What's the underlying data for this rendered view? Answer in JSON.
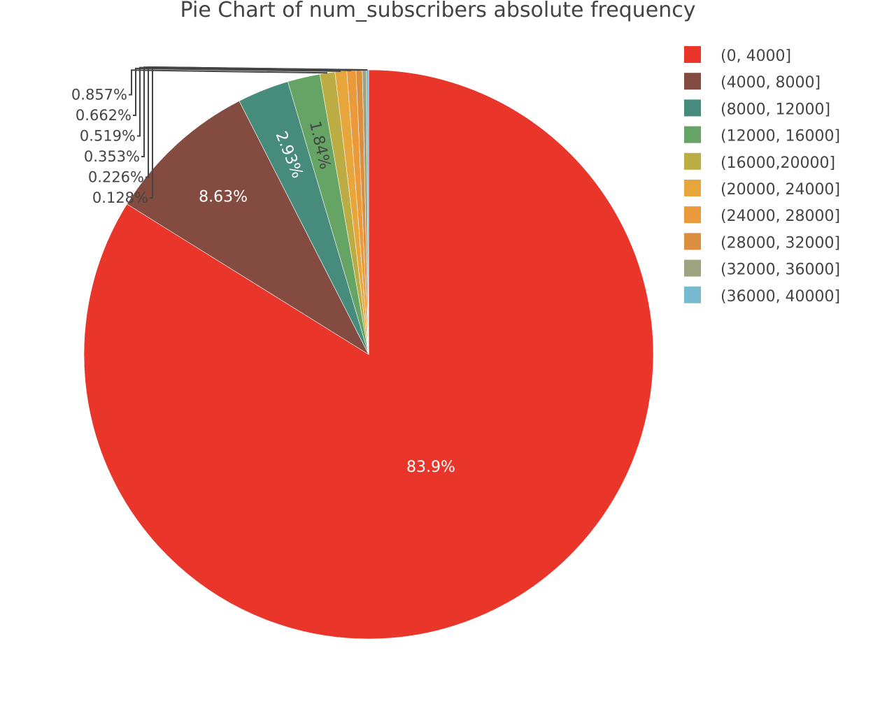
{
  "chart_data": {
    "type": "pie",
    "title": "Pie Chart of num_subscribers absolute frequency",
    "start_angle_deg": 90,
    "direction": "clockwise",
    "legend_position": "right",
    "slices": [
      {
        "label": "(0, 4000]",
        "percent": 83.9,
        "text": "83.9%",
        "color": "#E9352A",
        "text_color": "#ffffff",
        "text_mode": "inside"
      },
      {
        "label": "(4000, 8000]",
        "percent": 8.63,
        "text": "8.63%",
        "color": "#844B41",
        "text_color": "#ffffff",
        "text_mode": "inside"
      },
      {
        "label": "(8000, 12000]",
        "percent": 2.93,
        "text": "2.93%",
        "color": "#468B7C",
        "text_color": "#ffffff",
        "text_mode": "inside-radial"
      },
      {
        "label": "(12000, 16000]",
        "percent": 1.84,
        "text": "1.84%",
        "color": "#65A464",
        "text_color": "#444444",
        "text_mode": "inside-radial"
      },
      {
        "label": "(16000,20000]",
        "percent": 0.857,
        "text": "0.857%",
        "color": "#BBAD44",
        "text_color": "#444444",
        "text_mode": "outside"
      },
      {
        "label": "(20000, 24000]",
        "percent": 0.662,
        "text": "0.662%",
        "color": "#E7A63B",
        "text_color": "#444444",
        "text_mode": "outside"
      },
      {
        "label": "(24000, 28000]",
        "percent": 0.519,
        "text": "0.519%",
        "color": "#EA9A3B",
        "text_color": "#444444",
        "text_mode": "outside"
      },
      {
        "label": "(28000, 32000]",
        "percent": 0.353,
        "text": "0.353%",
        "color": "#DB8E40",
        "text_color": "#444444",
        "text_mode": "outside"
      },
      {
        "label": "(32000, 36000]",
        "percent": 0.226,
        "text": "0.226%",
        "color": "#9FA27E",
        "text_color": "#444444",
        "text_mode": "outside"
      },
      {
        "label": "(36000, 40000]",
        "percent": 0.128,
        "text": "0.128%",
        "color": "#79BAD3",
        "text_color": "#444444",
        "text_mode": "outside"
      }
    ]
  }
}
